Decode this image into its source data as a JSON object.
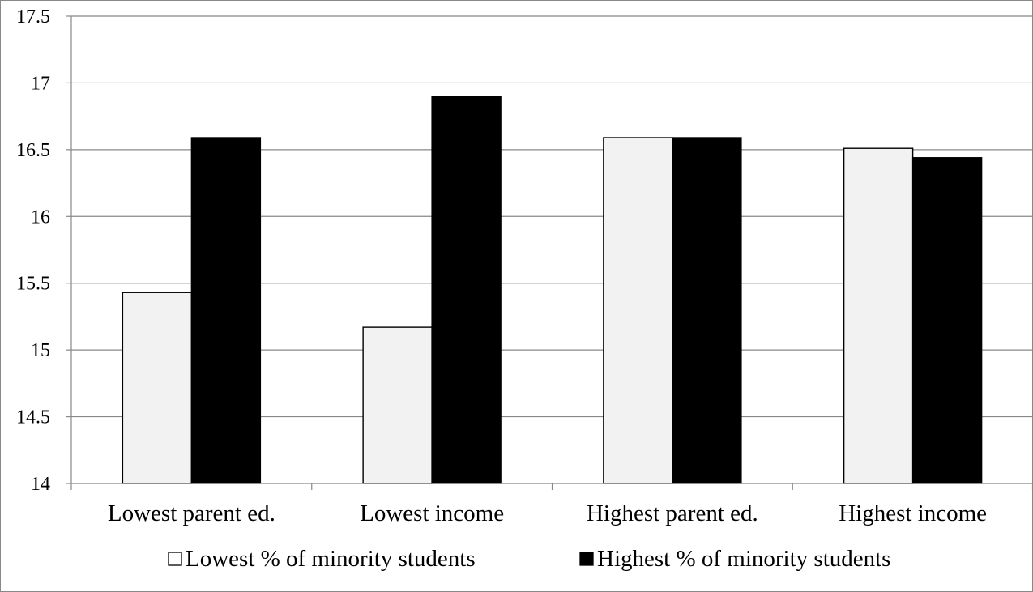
{
  "chart_data": {
    "type": "bar",
    "categories": [
      "Lowest parent ed.",
      "Lowest income",
      "Highest parent ed.",
      "Highest income"
    ],
    "series": [
      {
        "name": "Lowest % of minority students",
        "values": [
          15.43,
          15.17,
          16.59,
          16.51
        ],
        "color": "#f2f2f2"
      },
      {
        "name": "Highest % of minority students",
        "values": [
          16.59,
          16.9,
          16.59,
          16.44
        ],
        "color": "#000000"
      }
    ],
    "ylim": [
      14,
      17.5
    ],
    "yticks": [
      "14",
      "14.5",
      "15",
      "15.5",
      "16",
      "16.5",
      "17",
      "17.5"
    ],
    "grid": true,
    "legend_position": "bottom",
    "colors": {
      "gridline": "#888888",
      "bar_outline": "#000000",
      "frame": "#888888"
    }
  }
}
